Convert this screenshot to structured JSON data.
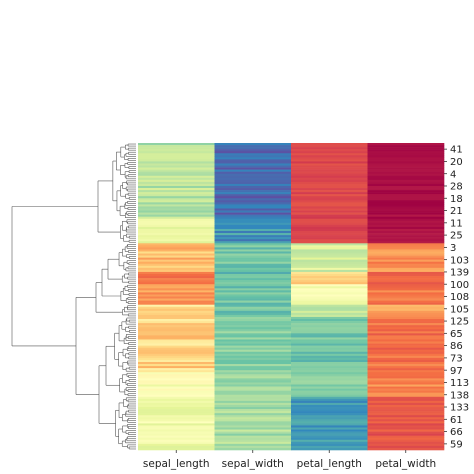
{
  "chart_data": {
    "type": "heatmap",
    "title": "",
    "xlabel": "",
    "ylabel": "",
    "columns": [
      "sepal_length",
      "sepal_width",
      "petal_length",
      "petal_width"
    ],
    "row_tick_labels": [
      "41",
      "20",
      "4",
      "28",
      "18",
      "21",
      "11",
      "25",
      "3",
      "103",
      "139",
      "100",
      "108",
      "105",
      "125",
      "65",
      "86",
      "73",
      "97",
      "113",
      "138",
      "133",
      "61",
      "66",
      "59"
    ],
    "row_count": 150,
    "row_dendrogram": true,
    "column_dendrogram": false,
    "colormap": "Spectral",
    "color_value_range": [
      0,
      1
    ],
    "blocks": [
      {
        "rows": 37,
        "values": [
          0.32,
          0.05,
          0.88,
          0.98
        ],
        "jitter": [
          0.06,
          0.05,
          0.03,
          0.02
        ]
      },
      {
        "rows": 12,
        "values": [
          0.42,
          0.12,
          0.88,
          0.97
        ],
        "jitter": [
          0.05,
          0.06,
          0.03,
          0.02
        ]
      },
      {
        "rows": 14,
        "values": [
          0.66,
          0.22,
          0.38,
          0.75
        ],
        "jitter": [
          0.07,
          0.05,
          0.06,
          0.05
        ]
      },
      {
        "rows": 6,
        "values": [
          0.78,
          0.2,
          0.62,
          0.8
        ],
        "jitter": [
          0.04,
          0.05,
          0.07,
          0.05
        ]
      },
      {
        "rows": 10,
        "values": [
          0.72,
          0.22,
          0.45,
          0.78
        ],
        "jitter": [
          0.06,
          0.06,
          0.06,
          0.05
        ]
      },
      {
        "rows": 6,
        "values": [
          0.6,
          0.22,
          0.34,
          0.72
        ],
        "jitter": [
          0.06,
          0.05,
          0.05,
          0.05
        ]
      },
      {
        "rows": 27,
        "values": [
          0.62,
          0.25,
          0.22,
          0.8
        ],
        "jitter": [
          0.08,
          0.05,
          0.05,
          0.05
        ]
      },
      {
        "rows": 12,
        "values": [
          0.48,
          0.28,
          0.25,
          0.76
        ],
        "jitter": [
          0.06,
          0.06,
          0.05,
          0.05
        ]
      },
      {
        "rows": 26,
        "values": [
          0.44,
          0.3,
          0.12,
          0.85
        ],
        "jitter": [
          0.06,
          0.06,
          0.05,
          0.04
        ]
      }
    ]
  }
}
